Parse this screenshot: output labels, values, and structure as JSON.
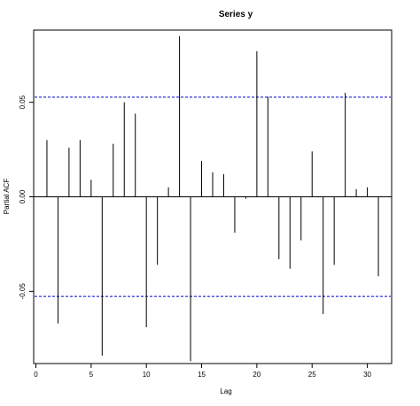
{
  "chart_data": {
    "type": "bar",
    "title": "Series  y",
    "xlabel": "Lag",
    "ylabel": "Partial ACF",
    "xlim": [
      -0.2,
      32.2
    ],
    "ylim": [
      -0.0882,
      0.0882
    ],
    "x_ticks": [
      0,
      5,
      10,
      15,
      20,
      25,
      30
    ],
    "x_tick_labels": [
      "0",
      "5",
      "10",
      "15",
      "20",
      "25",
      "30"
    ],
    "y_ticks": [
      -0.05,
      0.0,
      0.05
    ],
    "y_tick_labels": [
      "-0.05",
      "0.00",
      "0.05"
    ],
    "confidence_limit": 0.0527,
    "series": [
      {
        "x": [
          1,
          2,
          3,
          4,
          5,
          6,
          7,
          8,
          9,
          10,
          11,
          12,
          13,
          14,
          15,
          16,
          17,
          18,
          19,
          20,
          21,
          22,
          23,
          24,
          25,
          26,
          27,
          28,
          29,
          30,
          31
        ],
        "values": [
          0.03,
          -0.067,
          0.026,
          0.03,
          0.009,
          -0.084,
          0.028,
          0.05,
          0.044,
          -0.069,
          -0.036,
          0.005,
          0.085,
          -0.087,
          0.019,
          0.013,
          0.012,
          -0.019,
          -0.001,
          0.077,
          0.053,
          -0.033,
          -0.038,
          -0.023,
          0.024,
          -0.062,
          -0.036,
          0.055,
          0.004,
          0.005,
          -0.042
        ]
      }
    ],
    "colors": {
      "bars": "#000000",
      "zero_line": "#000000",
      "confidence_lines": "#0000cc"
    },
    "grid": false
  }
}
